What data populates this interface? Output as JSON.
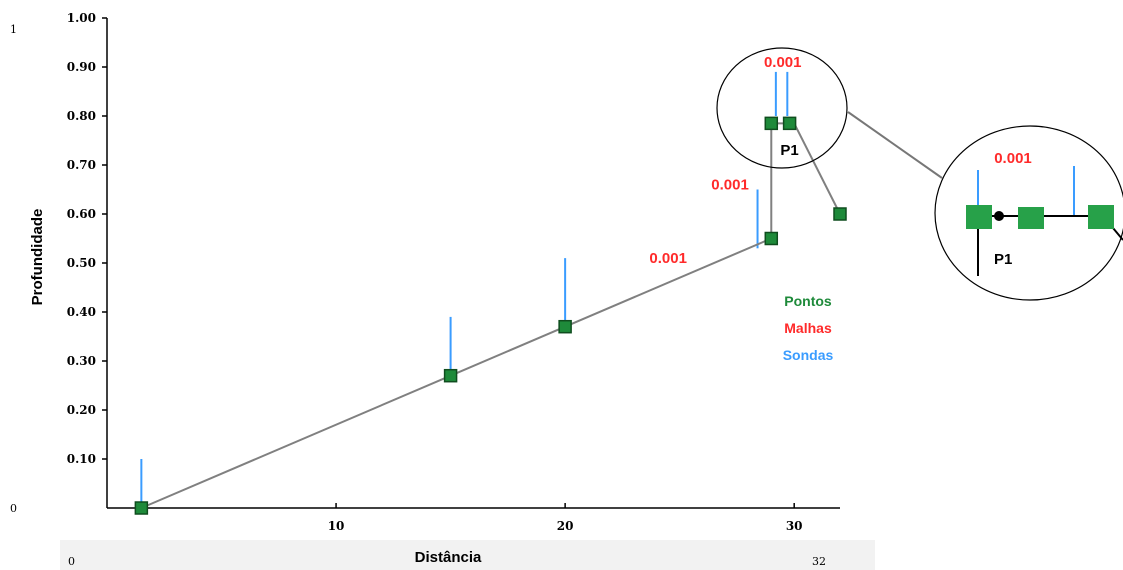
{
  "chart_data": {
    "type": "scatter",
    "title": "",
    "xlabel": "Distância",
    "ylabel": "Profundidade",
    "xlim": [
      0,
      32
    ],
    "ylim": [
      0,
      1.0
    ],
    "x_ticks": [
      "10",
      "20",
      "30"
    ],
    "y_ticks": [
      "0.10",
      "0.20",
      "0.30",
      "0.40",
      "0.50",
      "0.60",
      "0.70",
      "0.80",
      "0.90",
      "1.00"
    ],
    "corner_labels": {
      "y_top": "1",
      "y_bottom": "0",
      "x_left": "0",
      "x_right": "32"
    },
    "legend": {
      "placement": "right",
      "entries": [
        {
          "label": "Pontos",
          "color": "#1e8a3a"
        },
        {
          "label": "Malhas",
          "color": "#ff2a2a"
        },
        {
          "label": "Sondas",
          "color": "#3a9cff"
        }
      ]
    },
    "line": [
      {
        "x": 1.5,
        "y": 0.0
      },
      {
        "x": 15,
        "y": 0.27
      },
      {
        "x": 20,
        "y": 0.37
      },
      {
        "x": 29,
        "y": 0.55
      },
      {
        "x": 29,
        "y": 0.785
      },
      {
        "x": 30,
        "y": 0.785
      },
      {
        "x": 32,
        "y": 0.6
      }
    ],
    "points": [
      {
        "x": 1.5,
        "y": 0.0
      },
      {
        "x": 15,
        "y": 0.27
      },
      {
        "x": 20,
        "y": 0.37
      },
      {
        "x": 29,
        "y": 0.55
      },
      {
        "x": 29,
        "y": 0.785
      },
      {
        "x": 29.8,
        "y": 0.785
      },
      {
        "x": 32,
        "y": 0.6
      }
    ],
    "probes": [
      {
        "x": 1.5,
        "y0": 0.0,
        "y1": 0.1
      },
      {
        "x": 15,
        "y0": 0.27,
        "y1": 0.39
      },
      {
        "x": 20,
        "y0": 0.37,
        "y1": 0.51
      },
      {
        "x": 28.4,
        "y0": 0.53,
        "y1": 0.65
      },
      {
        "x": 29.2,
        "y0": 0.8,
        "y1": 0.89
      },
      {
        "x": 29.7,
        "y0": 0.8,
        "y1": 0.89
      }
    ],
    "mesh_labels": [
      {
        "text": "0.001",
        "x": 24.5,
        "y": 0.5
      },
      {
        "text": "0.001",
        "x": 27.2,
        "y": 0.65
      },
      {
        "text": "0.001",
        "x": 29.5,
        "y": 0.9
      }
    ],
    "point_label": {
      "text": "P1",
      "x": 29.8,
      "y": 0.72
    },
    "zoom_inset": {
      "mesh_label": "0.001",
      "point_label": "P1",
      "colors": {
        "point": "#27a149",
        "mesh": "#ff2a2a",
        "probe": "#3a9cff"
      }
    },
    "colors": {
      "point_fill": "#1e8a3a",
      "point_border": "#0f4d1e",
      "line": "#808080",
      "probe": "#3a9cff",
      "mesh": "#ff2a2a",
      "axis": "#000000"
    }
  }
}
